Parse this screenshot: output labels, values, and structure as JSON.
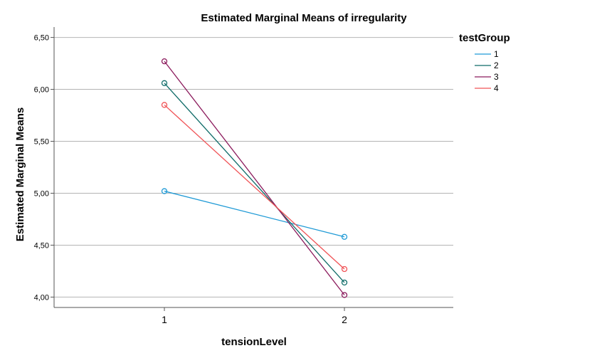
{
  "chart_data": {
    "type": "line",
    "title": "Estimated Marginal Means of irregularity",
    "xlabel": "tensionLevel",
    "ylabel": "Estimated Marginal Means",
    "categories": [
      "1",
      "2"
    ],
    "ylim": [
      3.9,
      6.6
    ],
    "yticks": [
      "4,00",
      "4,50",
      "5,00",
      "5,50",
      "6,00",
      "6,50"
    ],
    "ytick_values": [
      4.0,
      4.5,
      5.0,
      5.5,
      6.0,
      6.5
    ],
    "grid": "horizontal",
    "legend_title": "testGroup",
    "legend_position": "right",
    "series": [
      {
        "name": "1",
        "color": "#1f9ad6",
        "values": [
          5.02,
          4.58
        ]
      },
      {
        "name": "2",
        "color": "#0f6b68",
        "values": [
          6.06,
          4.14
        ]
      },
      {
        "name": "3",
        "color": "#8b1a5c",
        "values": [
          6.27,
          4.02
        ]
      },
      {
        "name": "4",
        "color": "#f05356",
        "values": [
          5.85,
          4.27
        ]
      }
    ]
  }
}
